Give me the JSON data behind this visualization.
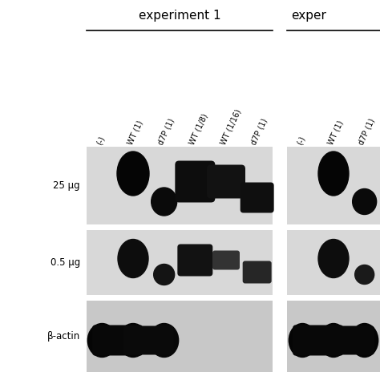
{
  "bg_color": "#ffffff",
  "panel_bg1": "#e8e8e8",
  "panel_bg2": "#d8d8d8",
  "title1": "experiment 1",
  "title2": "exper",
  "label1": "25 μg",
  "label2": "0.5 μg",
  "label3": "β-actin",
  "cols1": [
    "(-)",
    "WT (1)",
    "d7P (1)",
    "WT (1/8)",
    "WT (1/16)",
    "d7P (1)"
  ],
  "cols2": [
    "(-)",
    "WT (1)",
    "d7P (1)"
  ],
  "fig_w": 4.74,
  "fig_h": 4.74,
  "dpi": 100
}
